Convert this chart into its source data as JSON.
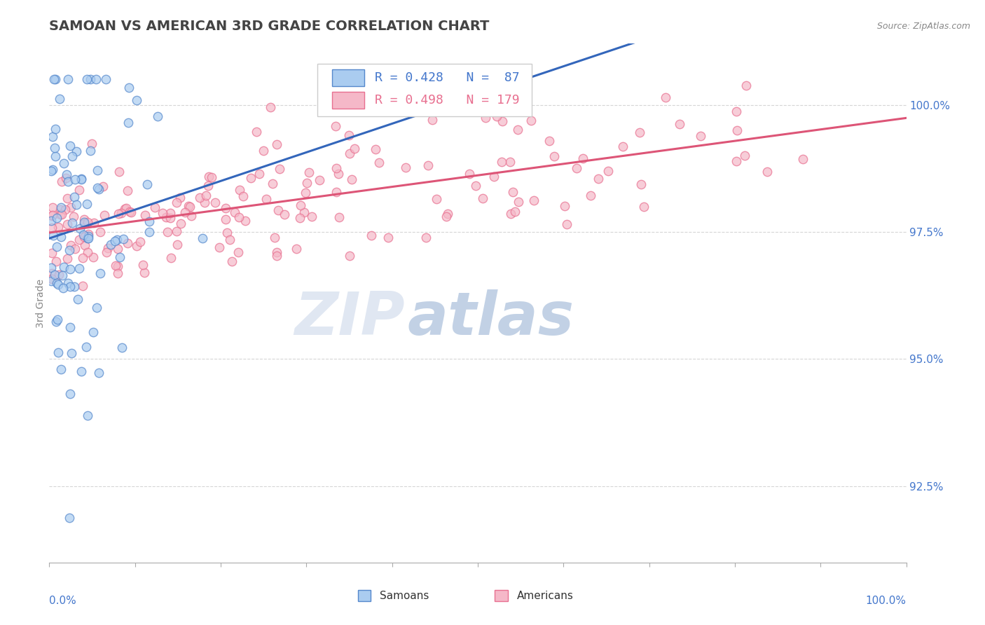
{
  "title": "SAMOAN VS AMERICAN 3RD GRADE CORRELATION CHART",
  "source_text": "Source: ZipAtlas.com",
  "legend_samoans": "Samoans",
  "legend_americans": "Americans",
  "R_samoan": 0.428,
  "N_samoan": 87,
  "R_american": 0.498,
  "N_american": 179,
  "color_samoan_fill": "#aaccf0",
  "color_samoan_edge": "#5588cc",
  "color_american_fill": "#f5b8c8",
  "color_american_edge": "#e87090",
  "color_samoan_line": "#3366bb",
  "color_american_line": "#dd5577",
  "color_text_blue": "#4477cc",
  "color_ylabel": "#888888",
  "background_color": "#ffffff",
  "grid_color": "#cccccc",
  "xmin": 0.0,
  "xmax": 100.0,
  "ymin": 91.0,
  "ymax": 101.2,
  "yticks": [
    92.5,
    95.0,
    97.5,
    100.0
  ],
  "title_fontsize": 14,
  "tick_fontsize": 11,
  "legend_fontsize": 13,
  "ylabel_fontsize": 10,
  "source_fontsize": 9,
  "watermark_zip_color": "#d0d8e8",
  "watermark_atlas_color": "#a0b8d8",
  "marker_size": 80,
  "marker_alpha": 0.7,
  "marker_linewidth": 1.0
}
